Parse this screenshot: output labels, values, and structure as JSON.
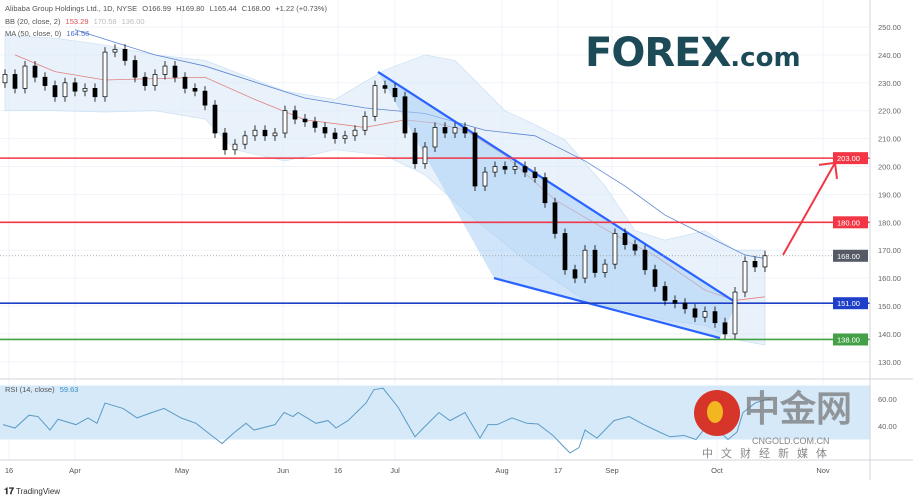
{
  "legend": {
    "symbol": "Alibaba Group Holdings Ltd., 1D, NYSE",
    "open": "O166.99",
    "high": "H169.80",
    "low": "L165.44",
    "close": "C168.00",
    "change": "+1.22 (+0.73%)",
    "bb_label": "BB (20, close, 2)",
    "bb_basis": "153.29",
    "bb_upper": "170.58",
    "bb_lower": "136.00",
    "ma_label": "MA (50, close, 0)",
    "ma_value": "164.56",
    "rsi_label": "RSI (14, close)",
    "rsi_value": "59.63"
  },
  "logo": {
    "brand": "FOREX",
    "suffix": ".com"
  },
  "footer": {
    "tradingview": "TradingView"
  },
  "watermark": {
    "name": "中金网",
    "url": "CNGOLD.COM.CN",
    "tagline": "中文财经新媒体"
  },
  "colors": {
    "up": "#ffffff",
    "down": "#000000",
    "bb_fill": "#dbeaf8",
    "bb_basis": "#e08080",
    "ma": "#5b85d0",
    "channel": "#2962ff",
    "channel_fill": "#a9d0f5",
    "red_level": "#f23645",
    "blue_level": "#1e40c8",
    "green_level": "#43a047",
    "last_price": "#555a66",
    "rsi_line": "#5a9bc4",
    "rsi_band": "#d6e9f9"
  },
  "chart_data": {
    "type": "candlestick",
    "title": "Alibaba Group Holdings Ltd., 1D, NYSE",
    "ylim": [
      125,
      255
    ],
    "y_ticks": [
      130,
      140,
      150,
      160,
      170,
      180,
      190,
      200,
      210,
      220,
      230,
      240,
      250
    ],
    "x_tick_labels": [
      "16",
      "Apr",
      "May",
      "Jun",
      "16",
      "Jul",
      "Aug",
      "17",
      "Sep",
      "Oct",
      "Nov"
    ],
    "grid": true,
    "closes": [
      233,
      228,
      236,
      232,
      229,
      225,
      230,
      227,
      228,
      225,
      241,
      242,
      238,
      232,
      229,
      233,
      236,
      232,
      228,
      227,
      222,
      212,
      206,
      208,
      211,
      213,
      211,
      212,
      220,
      217,
      216,
      214,
      212,
      210,
      211,
      213,
      218,
      229,
      228,
      225,
      212,
      201,
      207,
      214,
      212,
      214,
      212,
      193,
      198,
      200,
      199,
      200,
      198,
      196,
      187,
      176,
      163,
      160,
      170,
      162,
      165,
      176,
      172,
      170,
      163,
      157,
      152,
      151,
      149,
      146,
      148,
      144,
      140,
      155,
      166,
      164,
      168
    ],
    "first_open": 230,
    "bollinger": {
      "upper": [
        [
          0,
          247
        ],
        [
          5,
          246
        ],
        [
          10,
          243.5
        ],
        [
          15,
          240
        ],
        [
          20,
          238
        ],
        [
          28,
          227
        ],
        [
          33,
          224
        ],
        [
          38,
          234.6
        ],
        [
          42,
          240
        ],
        [
          45,
          238
        ],
        [
          50,
          220
        ],
        [
          53,
          215
        ],
        [
          56,
          209.5
        ],
        [
          60,
          193
        ],
        [
          63,
          177
        ],
        [
          66,
          173.6
        ],
        [
          70,
          177
        ],
        [
          73,
          170
        ],
        [
          76,
          170
        ]
      ],
      "basis": [
        [
          1,
          240
        ],
        [
          5,
          234
        ],
        [
          10,
          231
        ],
        [
          20,
          232
        ],
        [
          25,
          224
        ],
        [
          30,
          216.7
        ],
        [
          36,
          214
        ],
        [
          40,
          216.7
        ],
        [
          43,
          215.6
        ],
        [
          46,
          213
        ],
        [
          50,
          204
        ],
        [
          55,
          188
        ],
        [
          61,
          175.5
        ],
        [
          65,
          168
        ],
        [
          70,
          155.7
        ],
        [
          73,
          152
        ],
        [
          76,
          153.3
        ]
      ],
      "lower": [
        [
          0,
          220
        ],
        [
          5,
          220
        ],
        [
          10,
          219.5
        ],
        [
          15,
          220
        ],
        [
          20,
          217
        ],
        [
          23,
          206
        ],
        [
          28,
          202
        ],
        [
          33,
          206
        ],
        [
          38,
          204
        ],
        [
          42,
          197
        ],
        [
          47,
          181
        ],
        [
          52,
          166.5
        ],
        [
          58,
          152
        ],
        [
          62,
          148.6
        ],
        [
          66,
          145
        ],
        [
          70,
          143
        ],
        [
          73,
          138
        ],
        [
          76,
          136
        ]
      ]
    },
    "ma50": [
      [
        7,
        249
      ],
      [
        15,
        240
      ],
      [
        20,
        236
      ],
      [
        30,
        224.5
      ],
      [
        36,
        221
      ],
      [
        42,
        219
      ],
      [
        48,
        213
      ],
      [
        53,
        211
      ],
      [
        58,
        202
      ],
      [
        62,
        193
      ],
      [
        66,
        182.6
      ],
      [
        70,
        175.4
      ],
      [
        74,
        168.3
      ],
      [
        76,
        167
      ]
    ],
    "levels": [
      {
        "price": 203,
        "label": "203.00",
        "color": "red"
      },
      {
        "price": 180,
        "label": "180.00",
        "color": "red"
      },
      {
        "price": 151,
        "label": "151.00",
        "color": "blue"
      },
      {
        "price": 138,
        "label": "138.00",
        "color": "green"
      }
    ],
    "last_price": {
      "price": 168,
      "label": "168.00"
    },
    "channel": {
      "upper": [
        [
          37.3,
          233.9
        ],
        [
          73.2,
          151
        ]
      ],
      "lower": [
        [
          48.9,
          160
        ],
        [
          71.5,
          138.5
        ]
      ]
    },
    "arrow": {
      "from": [
        77.8,
        168.3
      ],
      "to": [
        83,
        201.3
      ]
    },
    "rsi": {
      "ylim": [
        15,
        75
      ],
      "y_ticks": [
        40,
        60
      ],
      "band": [
        30,
        70
      ],
      "values": [
        [
          -0.2,
          41
        ],
        [
          1,
          38.5
        ],
        [
          2.4,
          48
        ],
        [
          3.3,
          47
        ],
        [
          4.5,
          37
        ],
        [
          5.3,
          45
        ],
        [
          7.1,
          41
        ],
        [
          8.3,
          46
        ],
        [
          9.2,
          42
        ],
        [
          10,
          57
        ],
        [
          11.8,
          53
        ],
        [
          13.2,
          46
        ],
        [
          14.7,
          50
        ],
        [
          15.9,
          53
        ],
        [
          17.6,
          46
        ],
        [
          19.1,
          42
        ],
        [
          20.3,
          35
        ],
        [
          21.7,
          27
        ],
        [
          22.9,
          35
        ],
        [
          24.1,
          42
        ],
        [
          24.9,
          37
        ],
        [
          27,
          41
        ],
        [
          27.9,
          50
        ],
        [
          28.8,
          47
        ],
        [
          29.3,
          50
        ],
        [
          31.1,
          42
        ],
        [
          32.3,
          44
        ],
        [
          33.1,
          38.5
        ],
        [
          34.3,
          44
        ],
        [
          36.1,
          57
        ],
        [
          36.9,
          67
        ],
        [
          37.8,
          68
        ],
        [
          39.3,
          54
        ],
        [
          41,
          32
        ],
        [
          41.9,
          39
        ],
        [
          43.4,
          50
        ],
        [
          44.5,
          44
        ],
        [
          46,
          50
        ],
        [
          47.5,
          31
        ],
        [
          48.3,
          41
        ],
        [
          49.2,
          41
        ],
        [
          50.7,
          46
        ],
        [
          52.2,
          42
        ],
        [
          53.3,
          41.5
        ],
        [
          54.8,
          33
        ],
        [
          55.7,
          26
        ],
        [
          56.5,
          20
        ],
        [
          57.4,
          24
        ],
        [
          58,
          37
        ],
        [
          59.2,
          31
        ],
        [
          60.9,
          44
        ],
        [
          62.4,
          47
        ],
        [
          63.9,
          41
        ],
        [
          65.6,
          35
        ],
        [
          66.5,
          32
        ],
        [
          67.9,
          33
        ],
        [
          69.1,
          30
        ],
        [
          70,
          38.5
        ],
        [
          71.5,
          35.5
        ],
        [
          72.3,
          30
        ],
        [
          73.2,
          35.5
        ],
        [
          73.8,
          50
        ],
        [
          75,
          57
        ],
        [
          75.8,
          59
        ],
        [
          76.6,
          60
        ]
      ]
    }
  }
}
